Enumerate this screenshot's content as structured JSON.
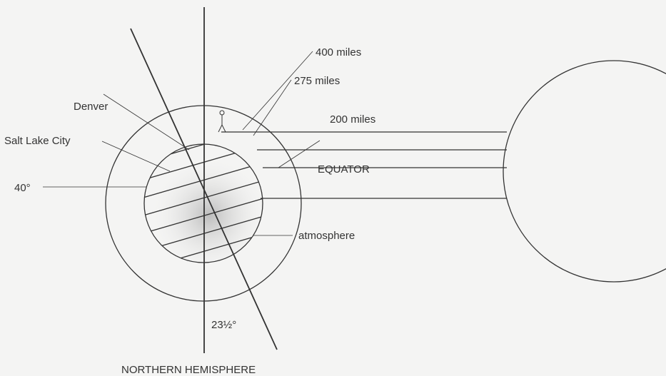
{
  "labels": {
    "miles400": "400 miles",
    "miles275": "275 miles",
    "miles200": "200 miles",
    "denver": "Denver",
    "salt_lake_city": "Salt Lake City",
    "latitude": "40°",
    "equator": "EQUATOR",
    "atmosphere": "atmosphere",
    "tilt": "23½°",
    "hemisphere": "NORTHERN HEMISPHERE"
  }
}
